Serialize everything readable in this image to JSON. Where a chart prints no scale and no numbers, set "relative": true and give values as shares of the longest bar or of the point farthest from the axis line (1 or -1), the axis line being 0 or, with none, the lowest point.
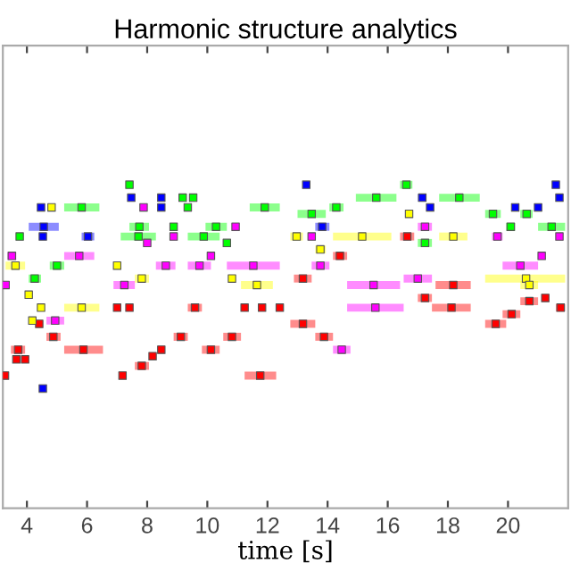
{
  "chart_data": {
    "type": "scatter",
    "title": "Harmonic structure analytics",
    "xlabel": "time [s]",
    "relative": true,
    "marker": "square",
    "grid": false,
    "tick_labels": "x",
    "xlim": [
      3.2,
      22.0
    ],
    "xticks": [
      4,
      6,
      8,
      10,
      12,
      14,
      16,
      18,
      20
    ],
    "series": [
      {
        "color": "#ff0000",
        "x": [
          3.27,
          7.18,
          11.76,
          3.71,
          5.88,
          8.47,
          10.12,
          3.65,
          3.94,
          4.88,
          9.12,
          10.82,
          4.41,
          13.18,
          19.59,
          7.0,
          7.41,
          9.59,
          11.24,
          11.82,
          12.41,
          18.12,
          21.75,
          8.18,
          7.82,
          14.41,
          16.65,
          13.18,
          18.18,
          17.24,
          21.24,
          20.71,
          20.12,
          13.88
        ],
        "values": [
          0.41,
          0.41,
          0.41,
          0.49,
          0.49,
          0.49,
          0.49,
          0.46,
          0.46,
          0.53,
          0.53,
          0.53,
          0.57,
          0.57,
          0.57,
          0.62,
          0.62,
          0.62,
          0.62,
          0.62,
          0.62,
          0.62,
          0.62,
          0.47,
          0.44,
          0.78,
          0.84,
          0.71,
          0.69,
          0.65,
          0.65,
          0.64,
          0.6,
          0.53
        ],
        "xerrors": [
          [
            3.18,
            3.35
          ],
          null,
          [
            11.24,
            12.29
          ],
          [
            3.47,
            3.94
          ],
          [
            5.24,
            6.53
          ],
          null,
          [
            9.82,
            10.41
          ],
          null,
          null,
          [
            4.65,
            5.12
          ],
          [
            8.88,
            9.35
          ],
          [
            10.53,
            11.12
          ],
          null,
          [
            12.76,
            13.59
          ],
          [
            19.24,
            19.94
          ],
          null,
          null,
          [
            9.35,
            9.82
          ],
          null,
          null,
          null,
          [
            17.47,
            18.76
          ],
          [
            21.59,
            21.9
          ],
          null,
          [
            7.59,
            8.06
          ],
          [
            14.18,
            14.65
          ],
          [
            16.41,
            16.88
          ],
          [
            12.88,
            13.47
          ],
          [
            17.59,
            18.76
          ],
          [
            17.0,
            17.47
          ],
          null,
          [
            20.41,
            21.0
          ],
          [
            19.82,
            20.41
          ],
          [
            13.59,
            14.18
          ]
        ]
      },
      {
        "color": "#ff00ff",
        "x": [
          3.5,
          5.74,
          10.12,
          21.12,
          8.62,
          9.74,
          11.53,
          13.76,
          20.41,
          3.29,
          7.24,
          15.53,
          4.94,
          8.0,
          10.94,
          17.24,
          8.88,
          19.65,
          21.71,
          13.47,
          17.0,
          15.59,
          14.47,
          7.88
        ],
        "values": [
          0.78,
          0.78,
          0.78,
          0.78,
          0.75,
          0.75,
          0.75,
          0.75,
          0.75,
          0.69,
          0.69,
          0.69,
          0.58,
          0.82,
          0.87,
          0.87,
          0.84,
          0.84,
          0.84,
          0.84,
          0.71,
          0.62,
          0.49,
          0.93
        ],
        "xerrors": [
          [
            3.35,
            3.65
          ],
          [
            5.24,
            6.24
          ],
          null,
          null,
          [
            8.29,
            8.94
          ],
          [
            9.35,
            10.12
          ],
          [
            10.65,
            12.41
          ],
          [
            13.47,
            14.06
          ],
          [
            19.82,
            21.0
          ],
          null,
          [
            6.88,
            7.59
          ],
          [
            14.65,
            16.41
          ],
          [
            4.65,
            5.24
          ],
          null,
          null,
          [
            17.0,
            17.47
          ],
          null,
          [
            19.47,
            19.82
          ],
          null,
          null,
          [
            16.53,
            17.47
          ],
          [
            14.65,
            16.53
          ],
          [
            14.18,
            14.76
          ],
          null
        ]
      },
      {
        "color": "#ffff00",
        "x": [
          3.62,
          7.0,
          7.82,
          10.82,
          20.6,
          11.65,
          20.71,
          4.06,
          4.47,
          5.82,
          4.18,
          4.82,
          12.97,
          15.15,
          18.18,
          13.76,
          16.71
        ],
        "values": [
          0.75,
          0.75,
          0.71,
          0.71,
          0.71,
          0.69,
          0.69,
          0.66,
          0.62,
          0.62,
          0.58,
          0.93,
          0.84,
          0.84,
          0.84,
          0.8,
          0.91
        ],
        "xerrors": [
          [
            3.29,
            3.94
          ],
          null,
          [
            7.59,
            8.06
          ],
          null,
          [
            19.24,
            21.9
          ],
          [
            11.12,
            12.18
          ],
          [
            20.41,
            21.0
          ],
          null,
          null,
          [
            5.24,
            6.41
          ],
          null,
          null,
          [
            12.76,
            13.18
          ],
          [
            14.18,
            16.12
          ],
          [
            17.71,
            18.65
          ],
          [
            13.59,
            13.94
          ],
          null
        ]
      },
      {
        "color": "#00ff00",
        "x": [
          5.82,
          9.35,
          11.91,
          14.29,
          9.18,
          9.53,
          15.62,
          18.38,
          16.62,
          7.41,
          7.74,
          8.88,
          10.29,
          20.09,
          21.45,
          3.76,
          7.71,
          9.88,
          10.65,
          17.24,
          5.0,
          4.26,
          13.47,
          19.5,
          20.62
        ],
        "values": [
          0.93,
          0.93,
          0.93,
          0.93,
          0.96,
          0.96,
          0.96,
          0.96,
          1.0,
          1.0,
          0.87,
          0.87,
          0.87,
          0.87,
          0.87,
          0.84,
          0.84,
          0.84,
          0.82,
          0.82,
          0.75,
          0.71,
          0.91,
          0.91,
          0.91
        ],
        "xerrors": [
          [
            5.24,
            6.41
          ],
          null,
          [
            11.41,
            12.41
          ],
          [
            14.06,
            14.53
          ],
          null,
          null,
          [
            14.94,
            16.29
          ],
          [
            17.71,
            19.06
          ],
          [
            16.41,
            16.82
          ],
          null,
          [
            7.41,
            8.06
          ],
          null,
          [
            9.94,
            10.65
          ],
          [
            19.94,
            20.24
          ],
          [
            21.0,
            21.9
          ],
          null,
          [
            7.12,
            8.29
          ],
          [
            9.35,
            10.41
          ],
          null,
          [
            17.0,
            17.47
          ],
          [
            4.76,
            5.24
          ],
          [
            4.06,
            4.47
          ],
          [
            13.0,
            13.94
          ],
          [
            19.24,
            19.76
          ],
          [
            20.41,
            20.82
          ]
        ]
      },
      {
        "color": "#0000ff",
        "x": [
          4.47,
          8.47,
          17.41,
          20.24,
          21.0,
          7.47,
          8.47,
          17.15,
          21.71,
          13.29,
          21.59,
          4.56,
          13.82,
          4.53,
          6.03,
          4.53
        ],
        "values": [
          0.93,
          0.93,
          0.93,
          0.93,
          0.93,
          0.96,
          0.96,
          0.96,
          0.96,
          1.0,
          1.0,
          0.87,
          0.87,
          0.84,
          0.84,
          0.37
        ],
        "xerrors": [
          null,
          null,
          null,
          null,
          null,
          null,
          null,
          [
            17.0,
            17.29
          ],
          null,
          null,
          null,
          [
            4.06,
            5.06
          ],
          [
            13.59,
            14.06
          ],
          null,
          [
            5.82,
            6.24
          ],
          null
        ]
      }
    ]
  }
}
